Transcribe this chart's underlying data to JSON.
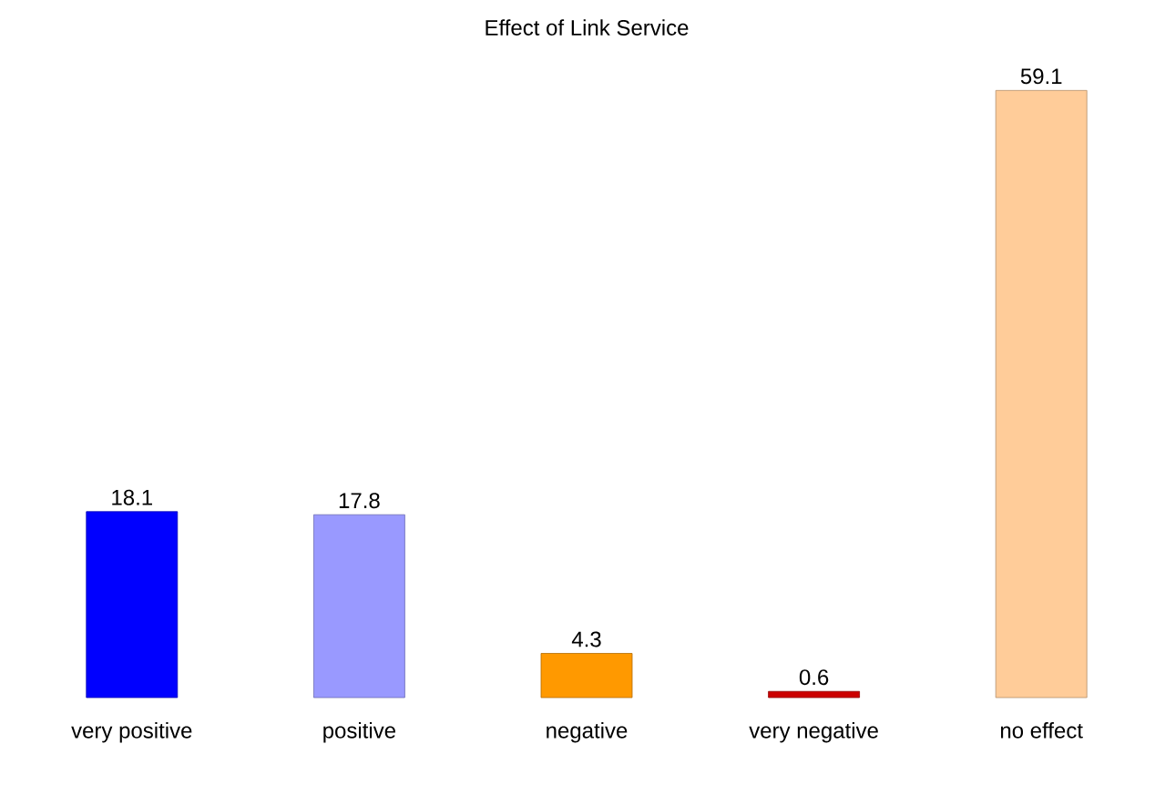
{
  "chart_data": {
    "type": "bar",
    "title": "Effect of Link Service",
    "categories": [
      "very positive",
      "positive",
      "negative",
      "very negative",
      "no effect"
    ],
    "values": [
      18.1,
      17.8,
      4.3,
      0.6,
      59.1
    ],
    "colors": [
      "#0000ff",
      "#9999ff",
      "#ff9900",
      "#cc0000",
      "#ffcc99"
    ],
    "data_labels": true
  }
}
